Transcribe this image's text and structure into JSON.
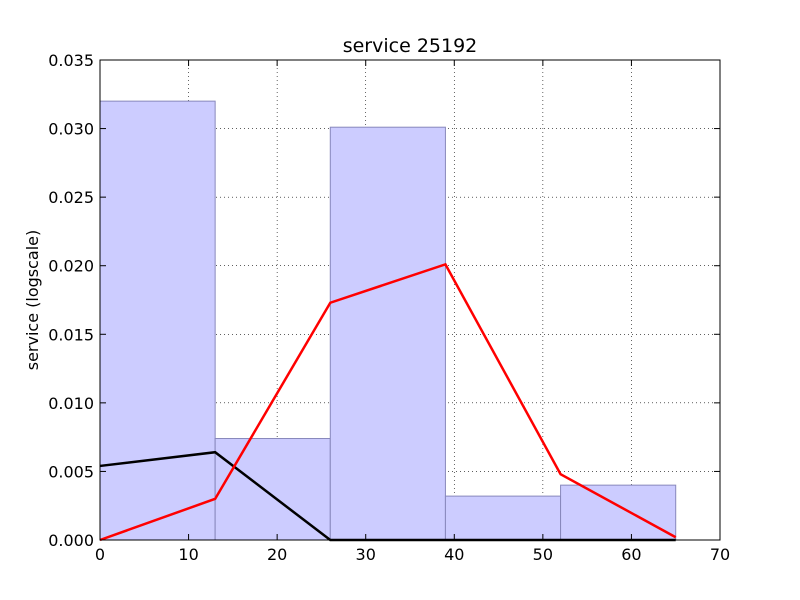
{
  "chart_data": {
    "type": "bar",
    "title": "service 25192",
    "xlabel": "",
    "ylabel": "service (logscale)",
    "xlim": [
      0,
      70
    ],
    "ylim": [
      0,
      0.035
    ],
    "grid": true,
    "xticks": [
      0,
      10,
      20,
      30,
      40,
      50,
      60,
      70
    ],
    "xtick_labels": [
      "0",
      "10",
      "20",
      "30",
      "40",
      "50",
      "60",
      "70"
    ],
    "yticks": [
      0,
      0.005,
      0.01,
      0.015,
      0.02,
      0.025,
      0.03,
      0.035
    ],
    "ytick_labels": [
      "0.000",
      "0.005",
      "0.010",
      "0.015",
      "0.020",
      "0.025",
      "0.030",
      "0.035"
    ],
    "histogram": {
      "bin_edges": [
        0,
        13,
        26,
        39,
        52,
        65
      ],
      "values": [
        0.032,
        0.0074,
        0.0301,
        0.0032,
        0.004
      ],
      "fill_color": "#ccccff",
      "edge_color": "#8888bb"
    },
    "series": [
      {
        "color": "#000000",
        "x": [
          0,
          13,
          26,
          39,
          52,
          65
        ],
        "y": [
          0.0054,
          0.0064,
          0.0,
          0.0,
          0.0,
          0.0
        ]
      },
      {
        "color": "#ff0000",
        "x": [
          0,
          13,
          26,
          39,
          52,
          65
        ],
        "y": [
          0.0,
          0.003,
          0.0173,
          0.0201,
          0.0048,
          0.0002
        ]
      }
    ]
  }
}
